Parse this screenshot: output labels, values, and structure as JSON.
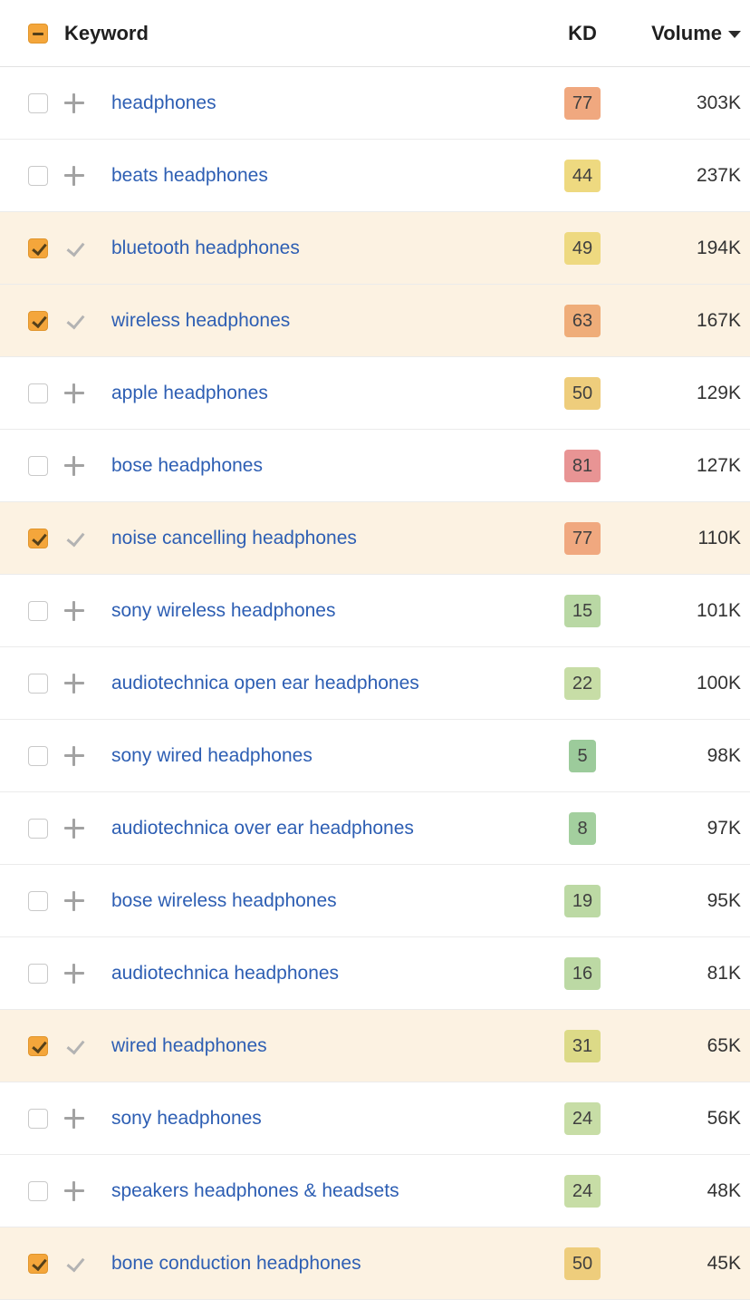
{
  "header": {
    "select_all_state": "indeterminate",
    "keyword_label": "Keyword",
    "kd_label": "KD",
    "volume_label": "Volume",
    "volume_sort": "descending"
  },
  "colors": {
    "link_blue": "#2d5eb3",
    "selected_row_bg": "#fcf2e2",
    "checkbox_checked_bg": "#f4a63b",
    "kd_badge_text": "#404040"
  },
  "rows": [
    {
      "keyword": "headphones",
      "checked": false,
      "kd": "77",
      "kd_color": "#f0a87f",
      "volume": "303K"
    },
    {
      "keyword": "beats headphones",
      "checked": false,
      "kd": "44",
      "kd_color": "#eed980",
      "volume": "237K"
    },
    {
      "keyword": "bluetooth headphones",
      "checked": true,
      "kd": "49",
      "kd_color": "#eed980",
      "volume": "194K"
    },
    {
      "keyword": "wireless headphones",
      "checked": true,
      "kd": "63",
      "kd_color": "#efad79",
      "volume": "167K"
    },
    {
      "keyword": "apple headphones",
      "checked": false,
      "kd": "50",
      "kd_color": "#eecd7c",
      "volume": "129K"
    },
    {
      "keyword": "bose headphones",
      "checked": false,
      "kd": "81",
      "kd_color": "#e89494",
      "volume": "127K"
    },
    {
      "keyword": "noise cancelling headphones",
      "checked": true,
      "kd": "77",
      "kd_color": "#f0a87f",
      "volume": "110K"
    },
    {
      "keyword": "sony wireless headphones",
      "checked": false,
      "kd": "15",
      "kd_color": "#b9d8a4",
      "volume": "101K"
    },
    {
      "keyword": "audiotechnica open ear headphones",
      "checked": false,
      "kd": "22",
      "kd_color": "#c7dda6",
      "volume": "100K"
    },
    {
      "keyword": "sony wired headphones",
      "checked": false,
      "kd": "5",
      "kd_color": "#9ccb9b",
      "volume": "98K"
    },
    {
      "keyword": "audiotechnica over ear headphones",
      "checked": false,
      "kd": "8",
      "kd_color": "#a3cf9e",
      "volume": "97K"
    },
    {
      "keyword": "bose wireless headphones",
      "checked": false,
      "kd": "19",
      "kd_color": "#bcd9a4",
      "volume": "95K"
    },
    {
      "keyword": "audiotechnica headphones",
      "checked": false,
      "kd": "16",
      "kd_color": "#bcd9a4",
      "volume": "81K"
    },
    {
      "keyword": "wired headphones",
      "checked": true,
      "kd": "31",
      "kd_color": "#dcda87",
      "volume": "65K"
    },
    {
      "keyword": "sony headphones",
      "checked": false,
      "kd": "24",
      "kd_color": "#c7dda6",
      "volume": "56K"
    },
    {
      "keyword": "speakers headphones & headsets",
      "checked": false,
      "kd": "24",
      "kd_color": "#c7dda6",
      "volume": "48K"
    },
    {
      "keyword": "bone conduction headphones",
      "checked": true,
      "kd": "50",
      "kd_color": "#eecd7c",
      "volume": "45K"
    }
  ]
}
